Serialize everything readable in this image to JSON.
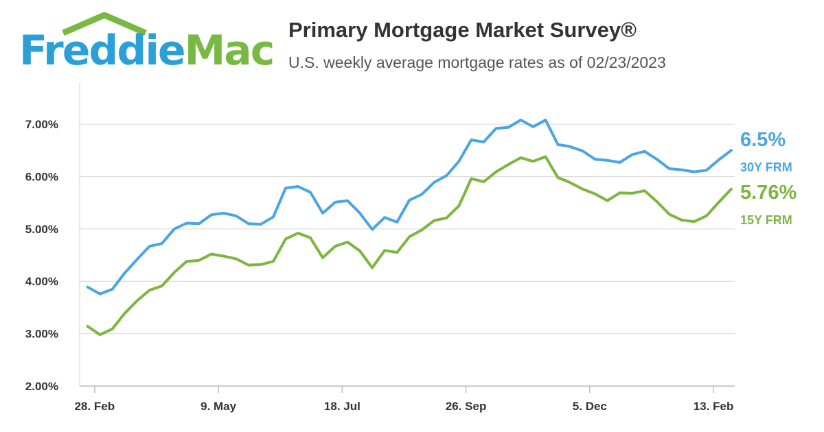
{
  "brand": {
    "word1": "Freddie",
    "word2": "Mac",
    "color1": "#2a9fd8",
    "color2": "#78b843"
  },
  "header": {
    "title": "Primary Mortgage Market Survey®",
    "subtitle": "U.S. weekly average mortgage rates as of 02/23/2023"
  },
  "chart_data": {
    "type": "line",
    "title": "Primary Mortgage Market Survey®",
    "subtitle": "U.S. weekly average mortgage rates as of 02/23/2023",
    "xlabel": "",
    "ylabel": "",
    "ylim": [
      2.0,
      7.8
    ],
    "y_ticks": [
      2,
      3,
      4,
      5,
      6,
      7
    ],
    "y_tick_labels": [
      "2.00%",
      "3.00%",
      "4.00%",
      "5.00%",
      "6.00%",
      "7.00%"
    ],
    "x_start": "2022-02-24",
    "x_end": "2023-02-23",
    "x_ticks": [
      {
        "date": "2022-02-28",
        "label": "28. Feb"
      },
      {
        "date": "2022-05-09",
        "label": "9. May"
      },
      {
        "date": "2022-07-18",
        "label": "18. Jul"
      },
      {
        "date": "2022-09-26",
        "label": "26. Sep"
      },
      {
        "date": "2022-12-05",
        "label": "5. Dec"
      },
      {
        "date": "2023-02-13",
        "label": "13. Feb"
      }
    ],
    "grid": true,
    "series": [
      {
        "name": "30Y FRM",
        "color": "#4aa5e2",
        "end_label": "6.5%",
        "x": [
          "2022-02-24",
          "2022-03-03",
          "2022-03-10",
          "2022-03-17",
          "2022-03-24",
          "2022-03-31",
          "2022-04-07",
          "2022-04-14",
          "2022-04-21",
          "2022-04-28",
          "2022-05-05",
          "2022-05-12",
          "2022-05-19",
          "2022-05-26",
          "2022-06-02",
          "2022-06-09",
          "2022-06-16",
          "2022-06-23",
          "2022-06-30",
          "2022-07-07",
          "2022-07-14",
          "2022-07-21",
          "2022-07-28",
          "2022-08-04",
          "2022-08-11",
          "2022-08-18",
          "2022-08-25",
          "2022-09-01",
          "2022-09-08",
          "2022-09-15",
          "2022-09-22",
          "2022-09-29",
          "2022-10-06",
          "2022-10-13",
          "2022-10-20",
          "2022-10-27",
          "2022-11-03",
          "2022-11-10",
          "2022-11-17",
          "2022-11-23",
          "2022-12-01",
          "2022-12-08",
          "2022-12-15",
          "2022-12-22",
          "2022-12-29",
          "2023-01-05",
          "2023-01-12",
          "2023-01-19",
          "2023-01-26",
          "2023-02-02",
          "2023-02-09",
          "2023-02-16",
          "2023-02-23"
        ],
        "values": [
          3.89,
          3.76,
          3.85,
          4.16,
          4.42,
          4.67,
          4.72,
          5.0,
          5.11,
          5.1,
          5.27,
          5.3,
          5.25,
          5.1,
          5.09,
          5.23,
          5.78,
          5.81,
          5.7,
          5.3,
          5.51,
          5.54,
          5.3,
          4.99,
          5.22,
          5.13,
          5.55,
          5.66,
          5.89,
          6.02,
          6.29,
          6.7,
          6.66,
          6.92,
          6.94,
          7.08,
          6.95,
          7.08,
          6.61,
          6.58,
          6.49,
          6.33,
          6.31,
          6.27,
          6.42,
          6.48,
          6.33,
          6.15,
          6.13,
          6.09,
          6.12,
          6.32,
          6.5
        ]
      },
      {
        "name": "15Y FRM",
        "color": "#7db53f",
        "end_label": "5.76%",
        "x": [
          "2022-02-24",
          "2022-03-03",
          "2022-03-10",
          "2022-03-17",
          "2022-03-24",
          "2022-03-31",
          "2022-04-07",
          "2022-04-14",
          "2022-04-21",
          "2022-04-28",
          "2022-05-05",
          "2022-05-12",
          "2022-05-19",
          "2022-05-26",
          "2022-06-02",
          "2022-06-09",
          "2022-06-16",
          "2022-06-23",
          "2022-06-30",
          "2022-07-07",
          "2022-07-14",
          "2022-07-21",
          "2022-07-28",
          "2022-08-04",
          "2022-08-11",
          "2022-08-18",
          "2022-08-25",
          "2022-09-01",
          "2022-09-08",
          "2022-09-15",
          "2022-09-22",
          "2022-09-29",
          "2022-10-06",
          "2022-10-13",
          "2022-10-20",
          "2022-10-27",
          "2022-11-03",
          "2022-11-10",
          "2022-11-17",
          "2022-11-23",
          "2022-12-01",
          "2022-12-08",
          "2022-12-15",
          "2022-12-22",
          "2022-12-29",
          "2023-01-05",
          "2023-01-12",
          "2023-01-19",
          "2023-01-26",
          "2023-02-02",
          "2023-02-09",
          "2023-02-16",
          "2023-02-23"
        ],
        "values": [
          3.14,
          2.98,
          3.09,
          3.39,
          3.63,
          3.83,
          3.91,
          4.17,
          4.38,
          4.4,
          4.52,
          4.48,
          4.43,
          4.31,
          4.32,
          4.38,
          4.81,
          4.92,
          4.83,
          4.45,
          4.67,
          4.75,
          4.58,
          4.26,
          4.59,
          4.55,
          4.85,
          4.98,
          5.16,
          5.21,
          5.44,
          5.96,
          5.9,
          6.09,
          6.23,
          6.36,
          6.29,
          6.38,
          5.98,
          5.9,
          5.76,
          5.67,
          5.54,
          5.69,
          5.68,
          5.73,
          5.52,
          5.28,
          5.17,
          5.14,
          5.25,
          5.51,
          5.76
        ]
      }
    ]
  }
}
